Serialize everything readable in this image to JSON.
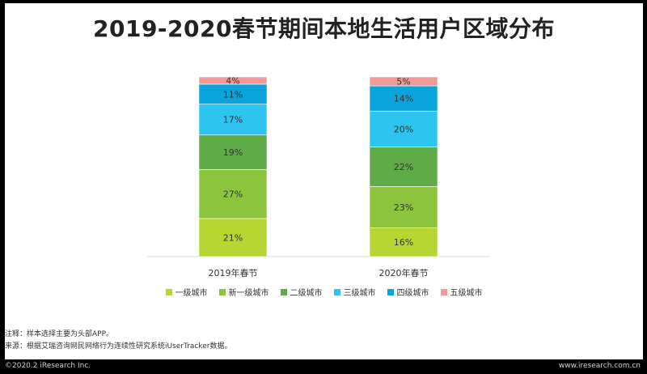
{
  "header": {
    "title": "2019-2020春节期间本地生活用户区域分布"
  },
  "chart_data": {
    "type": "bar",
    "stacked": true,
    "categories": [
      "2019年春节",
      "2020年春节"
    ],
    "series": [
      {
        "name": "一级城市",
        "color": "#b7d634",
        "values": [
          21,
          16
        ],
        "labels": [
          "21%",
          "16%"
        ]
      },
      {
        "name": "新一级城市",
        "color": "#8cc43e",
        "values": [
          27,
          23
        ],
        "labels": [
          "27%",
          "23%"
        ]
      },
      {
        "name": "二级城市",
        "color": "#5fab47",
        "values": [
          19,
          22
        ],
        "labels": [
          "19%",
          "22%"
        ]
      },
      {
        "name": "三级城市",
        "color": "#2ec4f0",
        "values": [
          17,
          20
        ],
        "labels": [
          "17%",
          "20%"
        ]
      },
      {
        "name": "四级城市",
        "color": "#0aa4dc",
        "values": [
          11,
          14
        ],
        "labels": [
          "11%",
          "14%"
        ]
      },
      {
        "name": "五级城市",
        "color": "#f09a9a",
        "values": [
          4,
          5
        ],
        "labels": [
          "4%",
          "5%"
        ]
      }
    ],
    "ylim": [
      0,
      100
    ],
    "legend_position": "bottom"
  },
  "notes": {
    "note": "注释：样本选择主要为头部APP。",
    "source": "来源：根据艾瑞咨询网民网络行为连续性研究系统iUserTracker数据。"
  },
  "footer": {
    "copyright": "©2020.2  iResearch Inc.",
    "website": "www.iresearch.com.cn"
  }
}
